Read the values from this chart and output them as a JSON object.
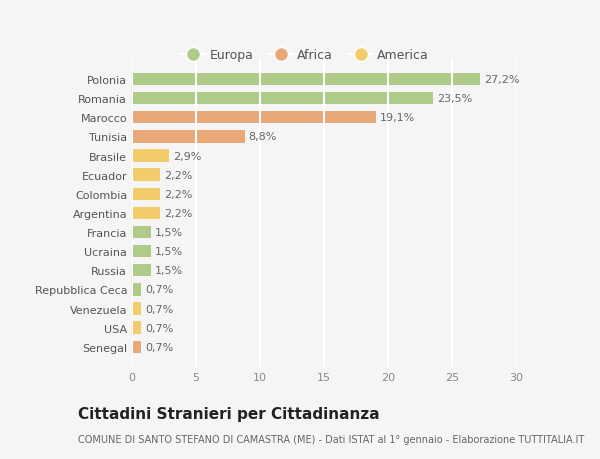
{
  "categories": [
    "Polonia",
    "Romania",
    "Marocco",
    "Tunisia",
    "Brasile",
    "Ecuador",
    "Colombia",
    "Argentina",
    "Francia",
    "Ucraina",
    "Russia",
    "Repubblica Ceca",
    "Venezuela",
    "USA",
    "Senegal"
  ],
  "values": [
    27.2,
    23.5,
    19.1,
    8.8,
    2.9,
    2.2,
    2.2,
    2.2,
    1.5,
    1.5,
    1.5,
    0.7,
    0.7,
    0.7,
    0.7
  ],
  "labels": [
    "27,2%",
    "23,5%",
    "19,1%",
    "8,8%",
    "2,9%",
    "2,2%",
    "2,2%",
    "2,2%",
    "1,5%",
    "1,5%",
    "1,5%",
    "0,7%",
    "0,7%",
    "0,7%",
    "0,7%"
  ],
  "colors": [
    "#aecb8a",
    "#aecb8a",
    "#e8a878",
    "#e8a878",
    "#f2cc6a",
    "#f2cc6a",
    "#f2cc6a",
    "#f2cc6a",
    "#aecb8a",
    "#aecb8a",
    "#aecb8a",
    "#aecb8a",
    "#f2cc6a",
    "#f2cc6a",
    "#e8a878"
  ],
  "legend_labels": [
    "Europa",
    "Africa",
    "America"
  ],
  "legend_colors": [
    "#aecb8a",
    "#e8a878",
    "#f2cc6a"
  ],
  "title": "Cittadini Stranieri per Cittadinanza",
  "subtitle": "COMUNE DI SANTO STEFANO DI CAMASTRA (ME) - Dati ISTAT al 1° gennaio - Elaborazione TUTTITALIA.IT",
  "xlim": [
    0,
    30
  ],
  "xticks": [
    0,
    5,
    10,
    15,
    20,
    25,
    30
  ],
  "background_color": "#f5f5f5",
  "plot_bg_color": "#f5f5f5",
  "grid_color": "#ffffff",
  "title_fontsize": 11,
  "subtitle_fontsize": 7,
  "label_fontsize": 8,
  "tick_fontsize": 8,
  "bar_height": 0.65
}
